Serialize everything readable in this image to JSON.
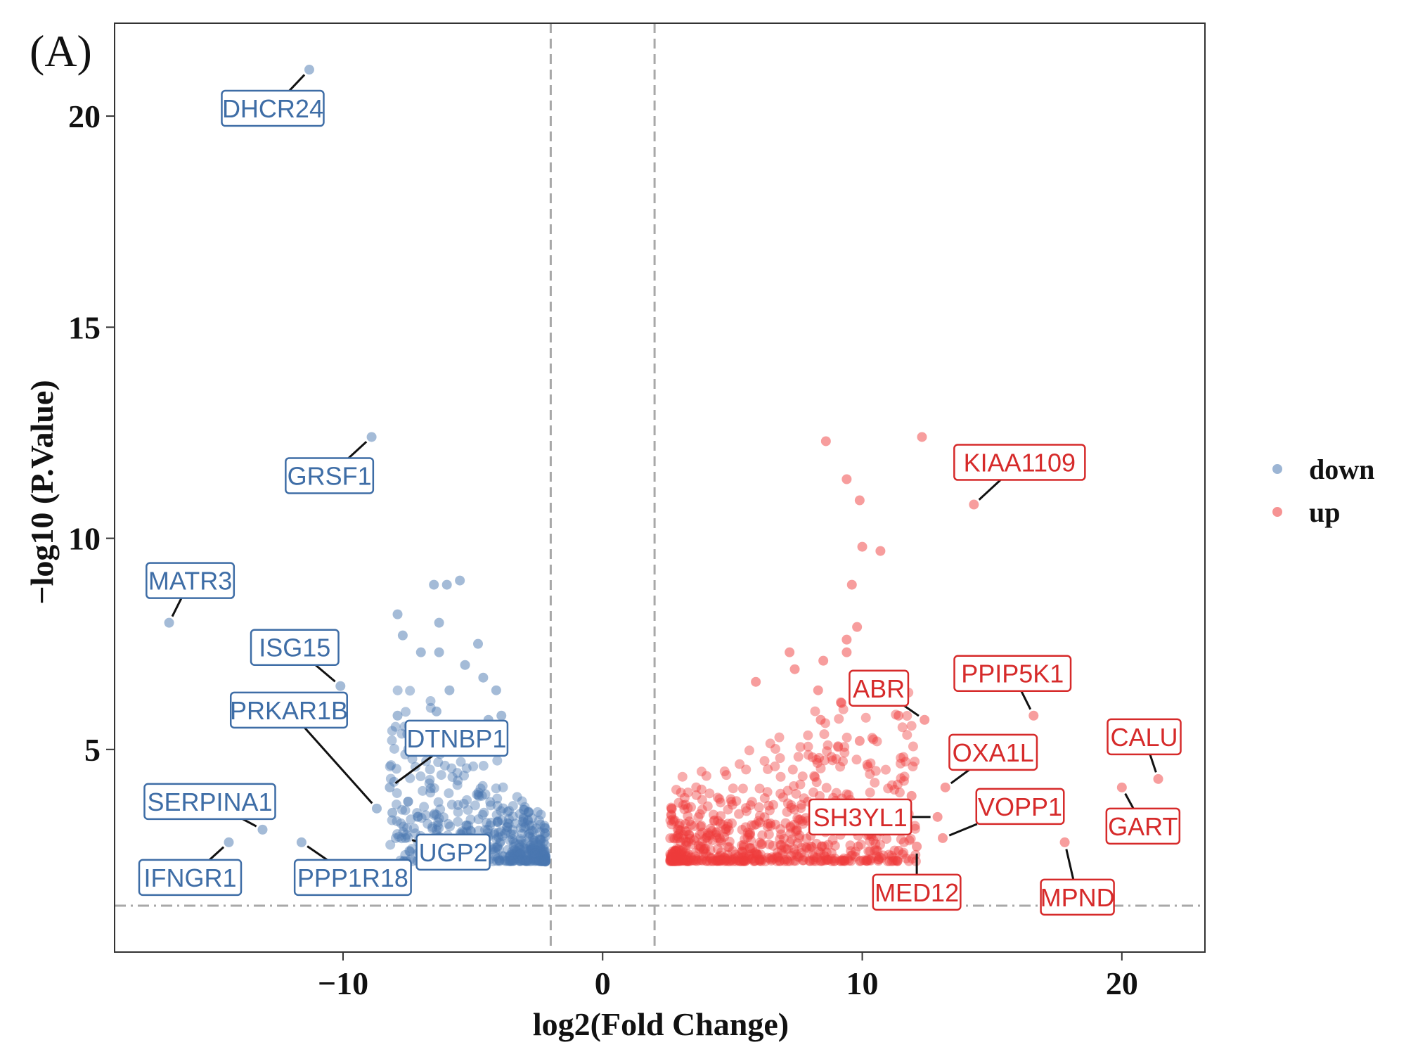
{
  "panel_label": "(A)",
  "colors": {
    "down": "#4a78b0",
    "up": "#ef3b3b",
    "down_label": "#3e6da6",
    "up_label": "#d62a2a",
    "threshold": "#a8a8a8"
  },
  "chart_data": {
    "type": "scatter",
    "title": "",
    "xlabel": "log2(Fold Change)",
    "ylabel": "−log10 (P.Value)",
    "xlim": [
      -18.8,
      23.2
    ],
    "ylim": [
      0.2,
      22.2
    ],
    "x_ticks": [
      -10,
      0,
      10,
      20
    ],
    "x_tick_labels": [
      "−10",
      "0",
      "10",
      "20"
    ],
    "y_ticks": [
      5,
      10,
      15,
      20
    ],
    "y_tick_labels": [
      "5",
      "10",
      "15",
      "20"
    ],
    "thresholds": {
      "x": [
        -2,
        2
      ],
      "y": 1.3
    },
    "legend": {
      "position": "right",
      "entries": [
        {
          "name": "down"
        },
        {
          "name": "up"
        }
      ]
    },
    "series": [
      {
        "name": "down",
        "points": [
          [
            -11.3,
            21.1
          ],
          [
            -8.9,
            12.4
          ],
          [
            -16.7,
            8.0
          ],
          [
            -10.1,
            6.5
          ],
          [
            -8.7,
            3.6
          ],
          [
            -8.2,
            4.1
          ],
          [
            -8.1,
            3.5
          ],
          [
            -13.1,
            3.1
          ],
          [
            -14.4,
            2.8
          ],
          [
            -11.6,
            2.8
          ],
          [
            -7.6,
            2.9
          ],
          [
            -7.9,
            8.2
          ],
          [
            -7.7,
            7.7
          ],
          [
            -7.0,
            7.3
          ],
          [
            -6.3,
            7.3
          ],
          [
            -6.5,
            8.9
          ],
          [
            -6.0,
            8.9
          ],
          [
            -5.5,
            9.0
          ],
          [
            -6.3,
            8.0
          ],
          [
            -4.8,
            7.5
          ],
          [
            -5.3,
            7.0
          ],
          [
            -4.6,
            6.7
          ],
          [
            -7.9,
            5.8
          ],
          [
            -6.4,
            5.9
          ],
          [
            -5.9,
            6.4
          ],
          [
            -4.1,
            6.4
          ],
          [
            -4.4,
            5.7
          ],
          [
            -3.9,
            5.8
          ]
        ]
      },
      {
        "name": "up",
        "points": [
          [
            12.3,
            12.4
          ],
          [
            8.6,
            12.3
          ],
          [
            9.4,
            11.4
          ],
          [
            9.9,
            10.9
          ],
          [
            14.3,
            10.8
          ],
          [
            10.0,
            9.8
          ],
          [
            10.7,
            9.7
          ],
          [
            9.6,
            8.9
          ],
          [
            9.8,
            7.9
          ],
          [
            9.4,
            7.6
          ],
          [
            9.4,
            7.3
          ],
          [
            7.2,
            7.3
          ],
          [
            8.5,
            7.1
          ],
          [
            7.4,
            6.9
          ],
          [
            5.9,
            6.6
          ],
          [
            9.2,
            6.1
          ],
          [
            8.3,
            6.4
          ],
          [
            16.6,
            5.8
          ],
          [
            12.4,
            5.7
          ],
          [
            11.4,
            5.8
          ],
          [
            8.4,
            5.7
          ],
          [
            9.9,
            5.2
          ],
          [
            21.4,
            4.3
          ],
          [
            20.0,
            4.1
          ],
          [
            13.2,
            4.1
          ],
          [
            12.9,
            3.4
          ],
          [
            11.9,
            3.9
          ],
          [
            17.8,
            2.8
          ],
          [
            13.1,
            2.9
          ],
          [
            12.1,
            2.7
          ],
          [
            11.4,
            2.6
          ]
        ]
      }
    ],
    "labels": [
      {
        "text": "DHCR24",
        "series": "down",
        "x": -11.3,
        "y": 21.1
      },
      {
        "text": "GRSF1",
        "series": "down",
        "x": -8.9,
        "y": 12.4
      },
      {
        "text": "MATR3",
        "series": "down",
        "x": -16.7,
        "y": 8.0
      },
      {
        "text": "ISG15",
        "series": "down",
        "x": -10.1,
        "y": 6.5
      },
      {
        "text": "PRKAR1B",
        "series": "down",
        "x": -8.7,
        "y": 3.6
      },
      {
        "text": "DTNBP1",
        "series": "down",
        "x": -8.2,
        "y": 4.1
      },
      {
        "text": "SERPINA1",
        "series": "down",
        "x": -13.1,
        "y": 3.1
      },
      {
        "text": "UGP2",
        "series": "down",
        "x": -7.6,
        "y": 2.9
      },
      {
        "text": "IFNGR1",
        "series": "down",
        "x": -14.4,
        "y": 2.8
      },
      {
        "text": "PPP1R18",
        "series": "down",
        "x": -11.6,
        "y": 2.8
      },
      {
        "text": "KIAA1109",
        "series": "up",
        "x": 14.3,
        "y": 10.8
      },
      {
        "text": "ABR",
        "series": "up",
        "x": 12.4,
        "y": 5.7
      },
      {
        "text": "PPIP5K1",
        "series": "up",
        "x": 16.6,
        "y": 5.8
      },
      {
        "text": "OXA1L",
        "series": "up",
        "x": 13.2,
        "y": 4.1
      },
      {
        "text": "CALU",
        "series": "up",
        "x": 21.4,
        "y": 4.3
      },
      {
        "text": "SH3YL1",
        "series": "up",
        "x": 12.9,
        "y": 3.4
      },
      {
        "text": "VOPP1",
        "series": "up",
        "x": 13.1,
        "y": 2.9
      },
      {
        "text": "GART",
        "series": "up",
        "x": 20.0,
        "y": 4.1
      },
      {
        "text": "MED12",
        "series": "up",
        "x": 12.1,
        "y": 2.7
      },
      {
        "text": "MPND",
        "series": "up",
        "x": 17.8,
        "y": 2.8
      }
    ]
  }
}
